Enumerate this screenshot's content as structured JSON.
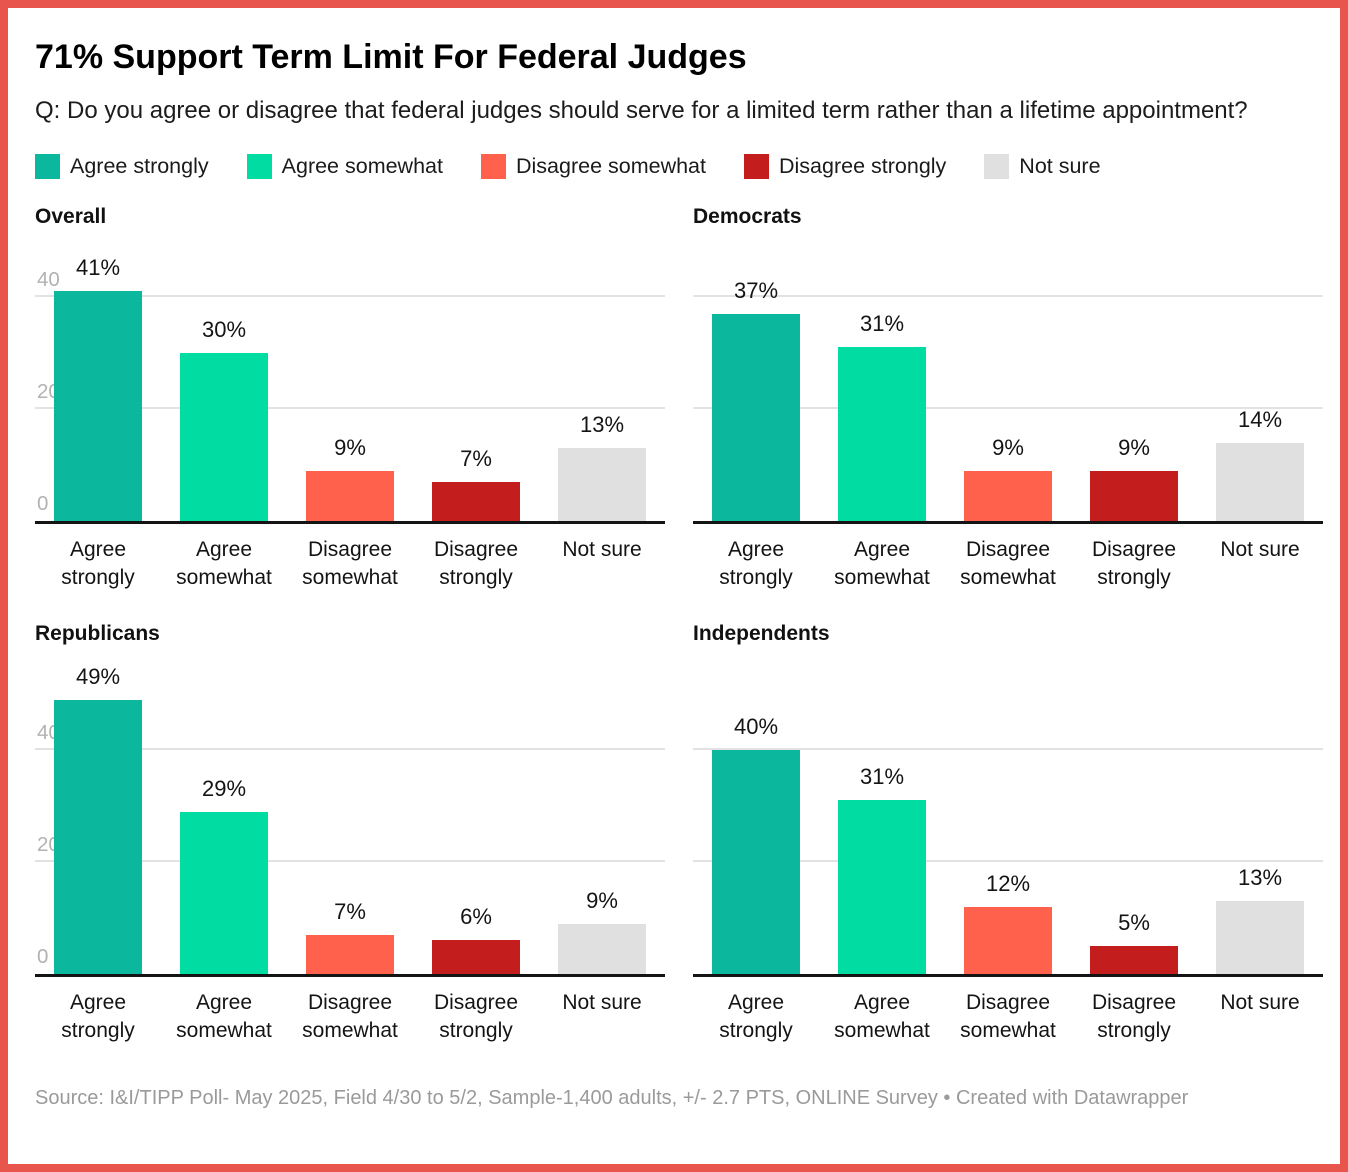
{
  "frame": {
    "border_color": "#e8554d"
  },
  "header": {
    "title": "71% Support Term Limit For Federal Judges",
    "question": "Q: Do you agree or disagree that federal judges should serve for a limited term rather than a lifetime appointment?"
  },
  "legend": {
    "items": [
      {
        "label": "Agree strongly",
        "color": "#0bb89d"
      },
      {
        "label": "Agree somewhat",
        "color": "#00dca2"
      },
      {
        "label": "Disagree somewhat",
        "color": "#ff614d"
      },
      {
        "label": "Disagree strongly",
        "color": "#c41d1d"
      },
      {
        "label": "Not sure",
        "color": "#e0e0e0"
      }
    ]
  },
  "chart_data": [
    {
      "type": "bar",
      "title": "Overall",
      "categories": [
        "Agree strongly",
        "Agree somewhat",
        "Disagree somewhat",
        "Disagree strongly",
        "Not sure"
      ],
      "values": [
        41,
        30,
        9,
        7,
        13
      ],
      "unit": "%",
      "ylim": [
        0,
        45
      ],
      "yticks": [
        0,
        20,
        40
      ],
      "show_ytick_labels": true,
      "grid": "horizontal",
      "legend_position": "top"
    },
    {
      "type": "bar",
      "title": "Democrats",
      "categories": [
        "Agree strongly",
        "Agree somewhat",
        "Disagree somewhat",
        "Disagree strongly",
        "Not sure"
      ],
      "values": [
        37,
        31,
        9,
        9,
        14
      ],
      "unit": "%",
      "ylim": [
        0,
        45
      ],
      "yticks": [
        0,
        20,
        40
      ],
      "show_ytick_labels": false,
      "grid": "horizontal",
      "legend_position": "top"
    },
    {
      "type": "bar",
      "title": "Republicans",
      "categories": [
        "Agree strongly",
        "Agree somewhat",
        "Disagree somewhat",
        "Disagree strongly",
        "Not sure"
      ],
      "values": [
        49,
        29,
        7,
        6,
        9
      ],
      "unit": "%",
      "ylim": [
        0,
        50
      ],
      "yticks": [
        0,
        20,
        40
      ],
      "show_ytick_labels": true,
      "grid": "horizontal",
      "legend_position": "top"
    },
    {
      "type": "bar",
      "title": "Independents",
      "categories": [
        "Agree strongly",
        "Agree somewhat",
        "Disagree somewhat",
        "Disagree strongly",
        "Not sure"
      ],
      "values": [
        40,
        31,
        12,
        5,
        13
      ],
      "unit": "%",
      "ylim": [
        0,
        50
      ],
      "yticks": [
        0,
        20,
        40
      ],
      "show_ytick_labels": false,
      "grid": "horizontal",
      "legend_position": "top"
    }
  ],
  "footer": {
    "source": "Source: I&I/TIPP Poll- May 2025, Field 4/30 to 5/2, Sample-1,400 adults, +/- 2.7 PTS, ONLINE Survey",
    "separator": "•",
    "attribution": "Created with Datawrapper"
  }
}
